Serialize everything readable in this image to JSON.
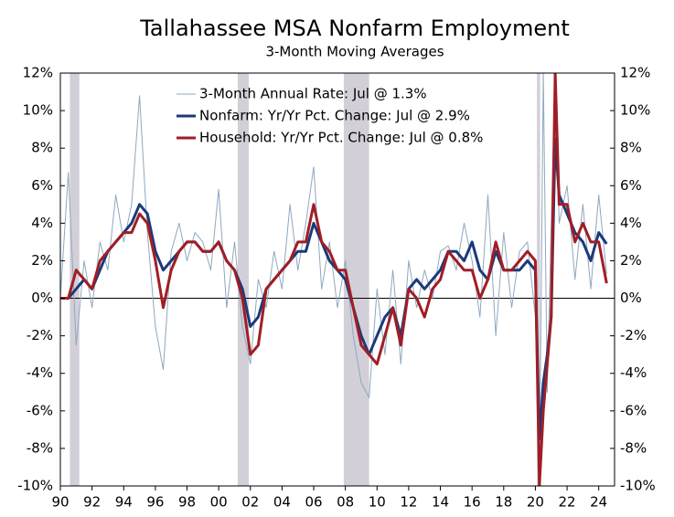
{
  "chart_data": {
    "type": "line",
    "title": "Tallahassee MSA Nonfarm Employment",
    "subtitle": "3-Month Moving Averages",
    "x": [
      1990,
      1990.5,
      1991,
      1991.5,
      1992,
      1992.5,
      1993,
      1993.5,
      1994,
      1994.5,
      1995,
      1995.5,
      1996,
      1996.5,
      1997,
      1997.5,
      1998,
      1998.5,
      1999,
      1999.5,
      2000,
      2000.5,
      2001,
      2001.5,
      2002,
      2002.5,
      2003,
      2003.5,
      2004,
      2004.5,
      2005,
      2005.5,
      2006,
      2006.5,
      2007,
      2007.5,
      2008,
      2008.5,
      2009,
      2009.5,
      2010,
      2010.5,
      2011,
      2011.5,
      2012,
      2012.5,
      2013,
      2013.5,
      2014,
      2014.5,
      2015,
      2015.5,
      2016,
      2016.5,
      2017,
      2017.5,
      2018,
      2018.5,
      2019,
      2019.5,
      2020,
      2020.25,
      2020.5,
      2020.75,
      2021,
      2021.25,
      2021.5,
      2022,
      2022.5,
      2023,
      2023.5,
      2024,
      2024.5
    ],
    "series": [
      {
        "name": "3-Month Annual Rate: Jul @ 1.3%",
        "color": "#8ea8bf",
        "width": 1,
        "values": [
          0,
          6.7,
          -2.5,
          2,
          -0.5,
          3,
          1.5,
          5.5,
          3,
          5,
          10.8,
          3.5,
          -1.5,
          -3.8,
          2.5,
          4,
          2,
          3.5,
          3,
          1.5,
          5.8,
          -0.5,
          3,
          -1.5,
          -3.5,
          1,
          -0.5,
          2.5,
          0.5,
          5,
          1.5,
          4,
          7,
          0.5,
          3,
          -0.5,
          2,
          -2,
          -4.5,
          -5.3,
          0.5,
          -3,
          1.5,
          -3.5,
          2,
          -0.5,
          1.5,
          0,
          2.5,
          2.8,
          1.5,
          4,
          2,
          -1,
          5.5,
          -2,
          3.5,
          -0.5,
          2.5,
          3,
          -1,
          -10,
          12,
          -5,
          4,
          12,
          4,
          6,
          1,
          5,
          0.5,
          5.5,
          1.3
        ]
      },
      {
        "name": "Nonfarm: Yr/Yr Pct. Change: Jul @ 2.9%",
        "color": "#1b3a78",
        "width": 3,
        "values": [
          0,
          0,
          0.5,
          1,
          0.5,
          1.5,
          2.5,
          3,
          3.5,
          4,
          5,
          4.5,
          2.5,
          1.5,
          2,
          2.5,
          3,
          3,
          2.5,
          2.5,
          3,
          2,
          1.5,
          0.5,
          -1.5,
          -1,
          0.5,
          1,
          1.5,
          2,
          2.5,
          2.5,
          4,
          3,
          2,
          1.5,
          1,
          -0.5,
          -2,
          -3,
          -2,
          -1,
          -0.5,
          -2,
          0.5,
          1,
          0.5,
          1,
          1.5,
          2.5,
          2.5,
          2,
          3,
          1.5,
          1,
          2.5,
          1.5,
          1.5,
          1.5,
          2,
          1.5,
          -7.5,
          -4.5,
          -3,
          -1,
          8.5,
          5.5,
          4.5,
          3.5,
          3,
          2,
          3.5,
          2.9
        ]
      },
      {
        "name": "Household: Yr/Yr Pct. Change: Jul @ 0.8%",
        "color": "#a11d25",
        "width": 3,
        "values": [
          0,
          0,
          1.5,
          1,
          0.5,
          2,
          2.5,
          3,
          3.5,
          3.5,
          4.5,
          4,
          2,
          -0.5,
          1.5,
          2.5,
          3,
          3,
          2.5,
          2.5,
          3,
          2,
          1.5,
          0,
          -3,
          -2.5,
          0.5,
          1,
          1.5,
          2,
          3,
          3,
          5,
          3,
          2.5,
          1.5,
          1.5,
          -0.5,
          -2.5,
          -3,
          -3.5,
          -2,
          -0.5,
          -2.5,
          0.5,
          0,
          -1,
          0.5,
          1,
          2.5,
          2,
          1.5,
          1.5,
          0,
          1,
          3,
          1.5,
          1.5,
          2,
          2.5,
          2,
          -10,
          -6,
          -3.5,
          -1,
          12,
          5,
          5,
          3,
          4,
          3,
          3,
          0.8
        ]
      }
    ],
    "recessions": [
      [
        1990.6,
        1991.2
      ],
      [
        2001.2,
        2001.9
      ],
      [
        2007.9,
        2009.5
      ],
      [
        2020.1,
        2020.3
      ]
    ],
    "recession_color": "#d3cfd8",
    "xlim": [
      1990,
      2025
    ],
    "xticks": [
      {
        "value": 1990,
        "label": "90"
      },
      {
        "value": 1992,
        "label": "92"
      },
      {
        "value": 1994,
        "label": "94"
      },
      {
        "value": 1996,
        "label": "96"
      },
      {
        "value": 1998,
        "label": "98"
      },
      {
        "value": 2000,
        "label": "00"
      },
      {
        "value": 2002,
        "label": "02"
      },
      {
        "value": 2004,
        "label": "04"
      },
      {
        "value": 2006,
        "label": "06"
      },
      {
        "value": 2008,
        "label": "08"
      },
      {
        "value": 2010,
        "label": "10"
      },
      {
        "value": 2012,
        "label": "12"
      },
      {
        "value": 2014,
        "label": "14"
      },
      {
        "value": 2016,
        "label": "16"
      },
      {
        "value": 2018,
        "label": "18"
      },
      {
        "value": 2020,
        "label": "20"
      },
      {
        "value": 2022,
        "label": "22"
      },
      {
        "value": 2024,
        "label": "24"
      }
    ],
    "ylim": [
      -10,
      12
    ],
    "yticks": [
      {
        "value": -10,
        "label": "-10%"
      },
      {
        "value": -8,
        "label": "-8%"
      },
      {
        "value": -6,
        "label": "-6%"
      },
      {
        "value": -4,
        "label": "-4%"
      },
      {
        "value": -2,
        "label": "-2%"
      },
      {
        "value": 0,
        "label": "0%"
      },
      {
        "value": 2,
        "label": "2%"
      },
      {
        "value": 4,
        "label": "4%"
      },
      {
        "value": 6,
        "label": "6%"
      },
      {
        "value": 8,
        "label": "8%"
      },
      {
        "value": 10,
        "label": "10%"
      },
      {
        "value": 12,
        "label": "12%"
      }
    ],
    "y2lim": [
      -10,
      12
    ],
    "y2ticks": [
      {
        "value": -10,
        "label": "-10%"
      },
      {
        "value": -8,
        "label": "-8%"
      },
      {
        "value": -6,
        "label": "-6%"
      },
      {
        "value": -4,
        "label": "-4%"
      },
      {
        "value": -2,
        "label": "-2%"
      },
      {
        "value": 0,
        "label": "0%"
      },
      {
        "value": 2,
        "label": "2%"
      },
      {
        "value": 4,
        "label": "4%"
      },
      {
        "value": 6,
        "label": "6%"
      },
      {
        "value": 8,
        "label": "8%"
      },
      {
        "value": 10,
        "label": "10%"
      },
      {
        "value": 12,
        "label": "12%"
      }
    ],
    "grid": false,
    "legend": "top"
  }
}
